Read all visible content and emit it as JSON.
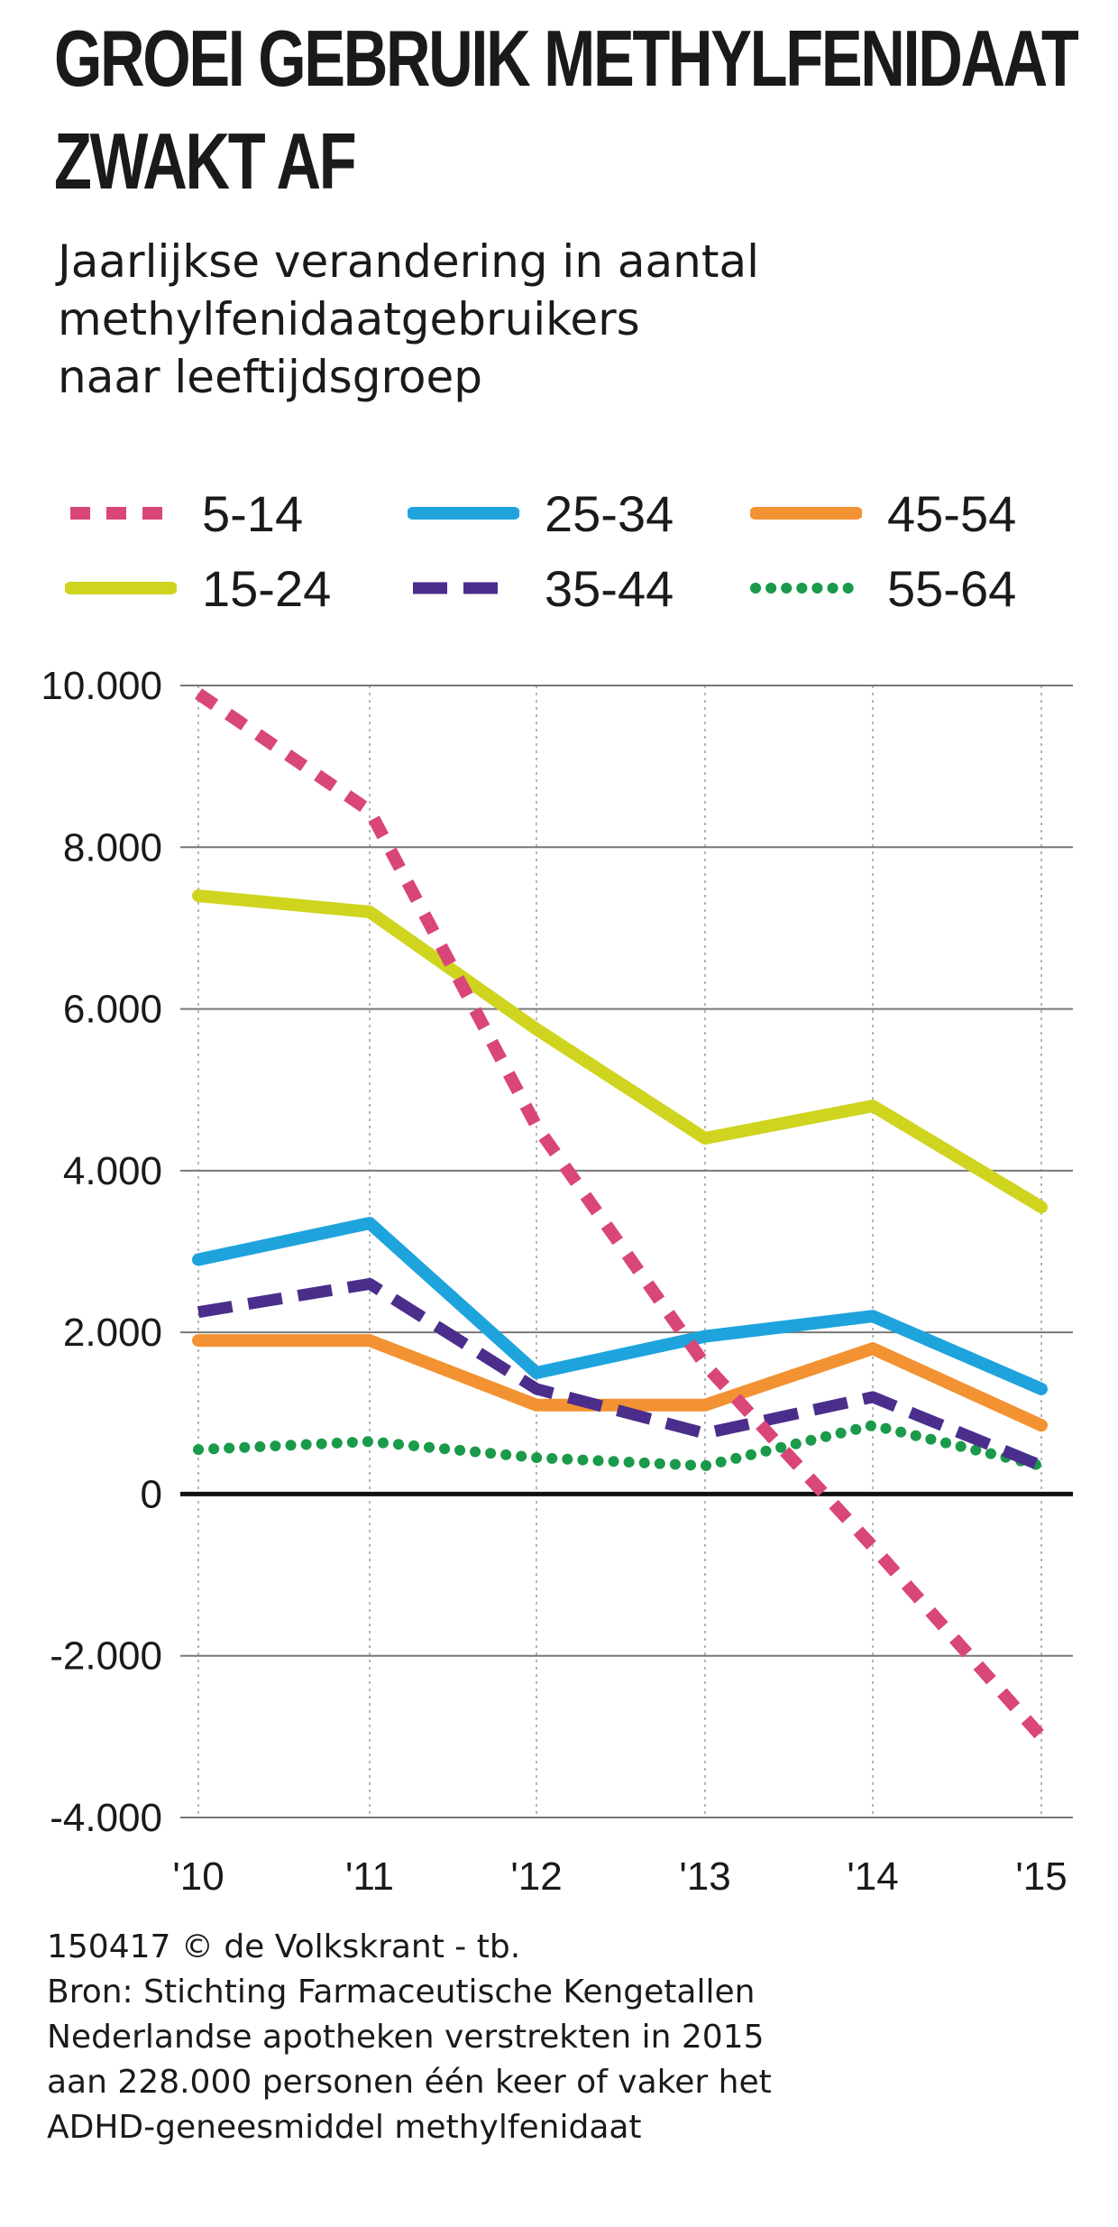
{
  "chart_data": {
    "type": "line",
    "title_lines": [
      "GROEI GEBRUIK METHYLFENIDAAT",
      "ZWAKT AF"
    ],
    "subtitle_lines": [
      "Jaarlijkse verandering in aantal",
      "methylfenidaatgebruikers",
      "naar leeftijdsgroep"
    ],
    "categories": [
      "'10",
      "'11",
      "'12",
      "'13",
      "'14",
      "'15"
    ],
    "y_ticks": [
      {
        "value": 10000,
        "label": "10.000"
      },
      {
        "value": 8000,
        "label": "8.000"
      },
      {
        "value": 6000,
        "label": "6.000"
      },
      {
        "value": 4000,
        "label": "4.000"
      },
      {
        "value": 2000,
        "label": "2.000"
      },
      {
        "value": 0,
        "label": "0"
      },
      {
        "value": -2000,
        "label": "-2.000"
      },
      {
        "value": -4000,
        "label": "-4.000"
      }
    ],
    "ylim": [
      -4000,
      10000
    ],
    "grid": true,
    "legend_position": "top",
    "series": [
      {
        "name": "5-14",
        "color": "#d94678",
        "style": "dashed",
        "values": [
          9900,
          8450,
          4550,
          1600,
          -650,
          -3000
        ]
      },
      {
        "name": "15-24",
        "color": "#cfd41f",
        "style": "solid",
        "values": [
          7400,
          7200,
          5750,
          4400,
          4800,
          3550
        ]
      },
      {
        "name": "25-34",
        "color": "#1fa3dd",
        "style": "solid",
        "values": [
          2900,
          3350,
          1500,
          1950,
          2200,
          1300
        ]
      },
      {
        "name": "35-44",
        "color": "#4b2d8c",
        "style": "longdash",
        "values": [
          2250,
          2600,
          1300,
          750,
          1200,
          350
        ]
      },
      {
        "name": "45-54",
        "color": "#f39232",
        "style": "solid",
        "values": [
          1900,
          1900,
          1100,
          1100,
          1800,
          850
        ]
      },
      {
        "name": "55-64",
        "color": "#1a9a4a",
        "style": "dotted",
        "values": [
          550,
          650,
          450,
          350,
          850,
          350
        ]
      }
    ]
  },
  "footer_lines": [
    "150417 © de Volkskrant - tb.",
    "Bron: Stichting Farmaceutische Kengetallen",
    "Nederlandse apotheken verstrekten in 2015",
    "aan 228.000 personen één keer of vaker het",
    "ADHD-geneesmiddel methylfenidaat"
  ]
}
